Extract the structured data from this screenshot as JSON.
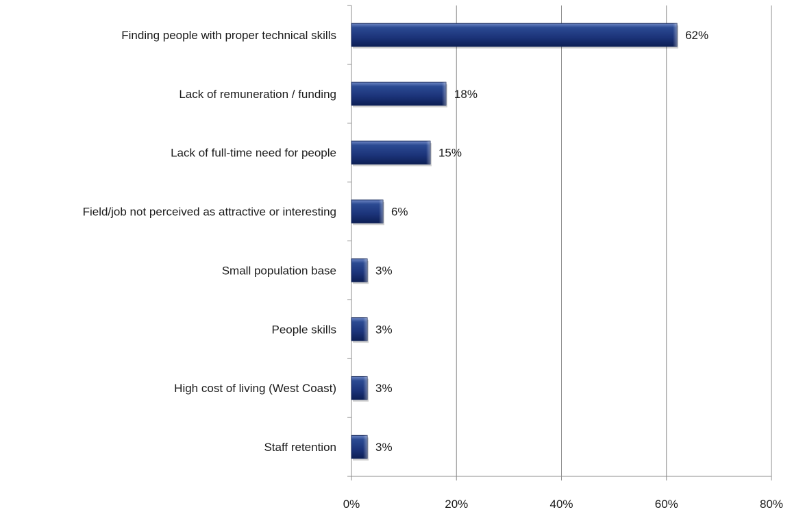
{
  "chart_data": {
    "type": "bar",
    "orientation": "horizontal",
    "categories": [
      "Finding people with proper technical skills",
      "Lack of remuneration / funding",
      "Lack of full-time  need for people",
      "Field/job not perceived as attractive or interesting",
      "Small population  base",
      "People skills",
      "High cost of living (West Coast)",
      "Staff retention"
    ],
    "values": [
      62,
      18,
      15,
      6,
      3,
      3,
      3,
      3
    ],
    "data_labels": [
      "62%",
      "18%",
      "15%",
      "6%",
      "3%",
      "3%",
      "3%",
      "3%"
    ],
    "xlim": [
      0,
      80
    ],
    "xticks": [
      0,
      20,
      40,
      60,
      80
    ],
    "xtick_labels": [
      "0%",
      "20%",
      "40%",
      "60%",
      "80%"
    ],
    "grid": "vertical",
    "legend": "none",
    "colors": {
      "bar": "#1f3a7a",
      "bar_dark": "#0f2256",
      "bar_light": "#5a75b8",
      "grid": "#8c8c8c",
      "axis": "#8c8c8c"
    }
  }
}
